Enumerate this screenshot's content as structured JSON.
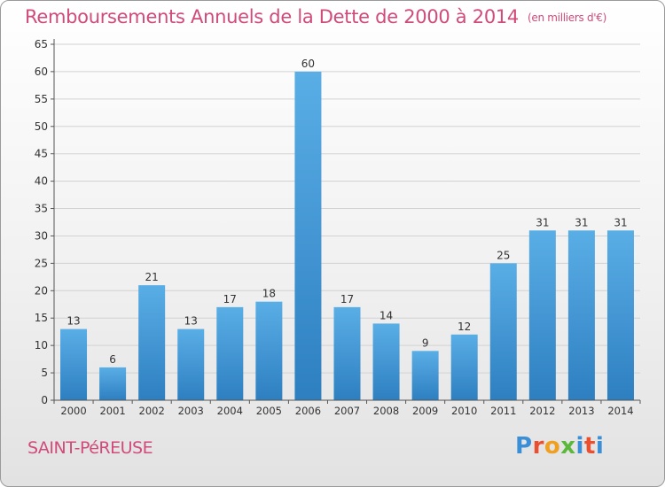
{
  "header": {
    "title": "Remboursements Annuels de la Dette de 2000 à 2014",
    "unit": "(en milliers d'€)"
  },
  "footer": {
    "city": "SAINT-PéREUSE",
    "logo": "Proxiti"
  },
  "colors": {
    "accent": "#d04a7a",
    "bar_top": "#5aaee6",
    "bar_bottom": "#2d7fc0"
  },
  "chart_data": {
    "type": "bar",
    "title": "Remboursements Annuels de la Dette de 2000 à 2014",
    "xlabel": "",
    "ylabel": "",
    "categories": [
      "2000",
      "2001",
      "2002",
      "2003",
      "2004",
      "2005",
      "2006",
      "2007",
      "2008",
      "2009",
      "2010",
      "2011",
      "2012",
      "2013",
      "2014"
    ],
    "values": [
      13,
      6,
      21,
      13,
      17,
      18,
      60,
      17,
      14,
      9,
      12,
      25,
      31,
      31,
      31
    ],
    "ylim": [
      0,
      65
    ],
    "yticks": [
      0,
      5,
      10,
      15,
      20,
      25,
      30,
      35,
      40,
      45,
      50,
      55,
      60,
      65
    ],
    "grid": true,
    "data_labels": true
  }
}
